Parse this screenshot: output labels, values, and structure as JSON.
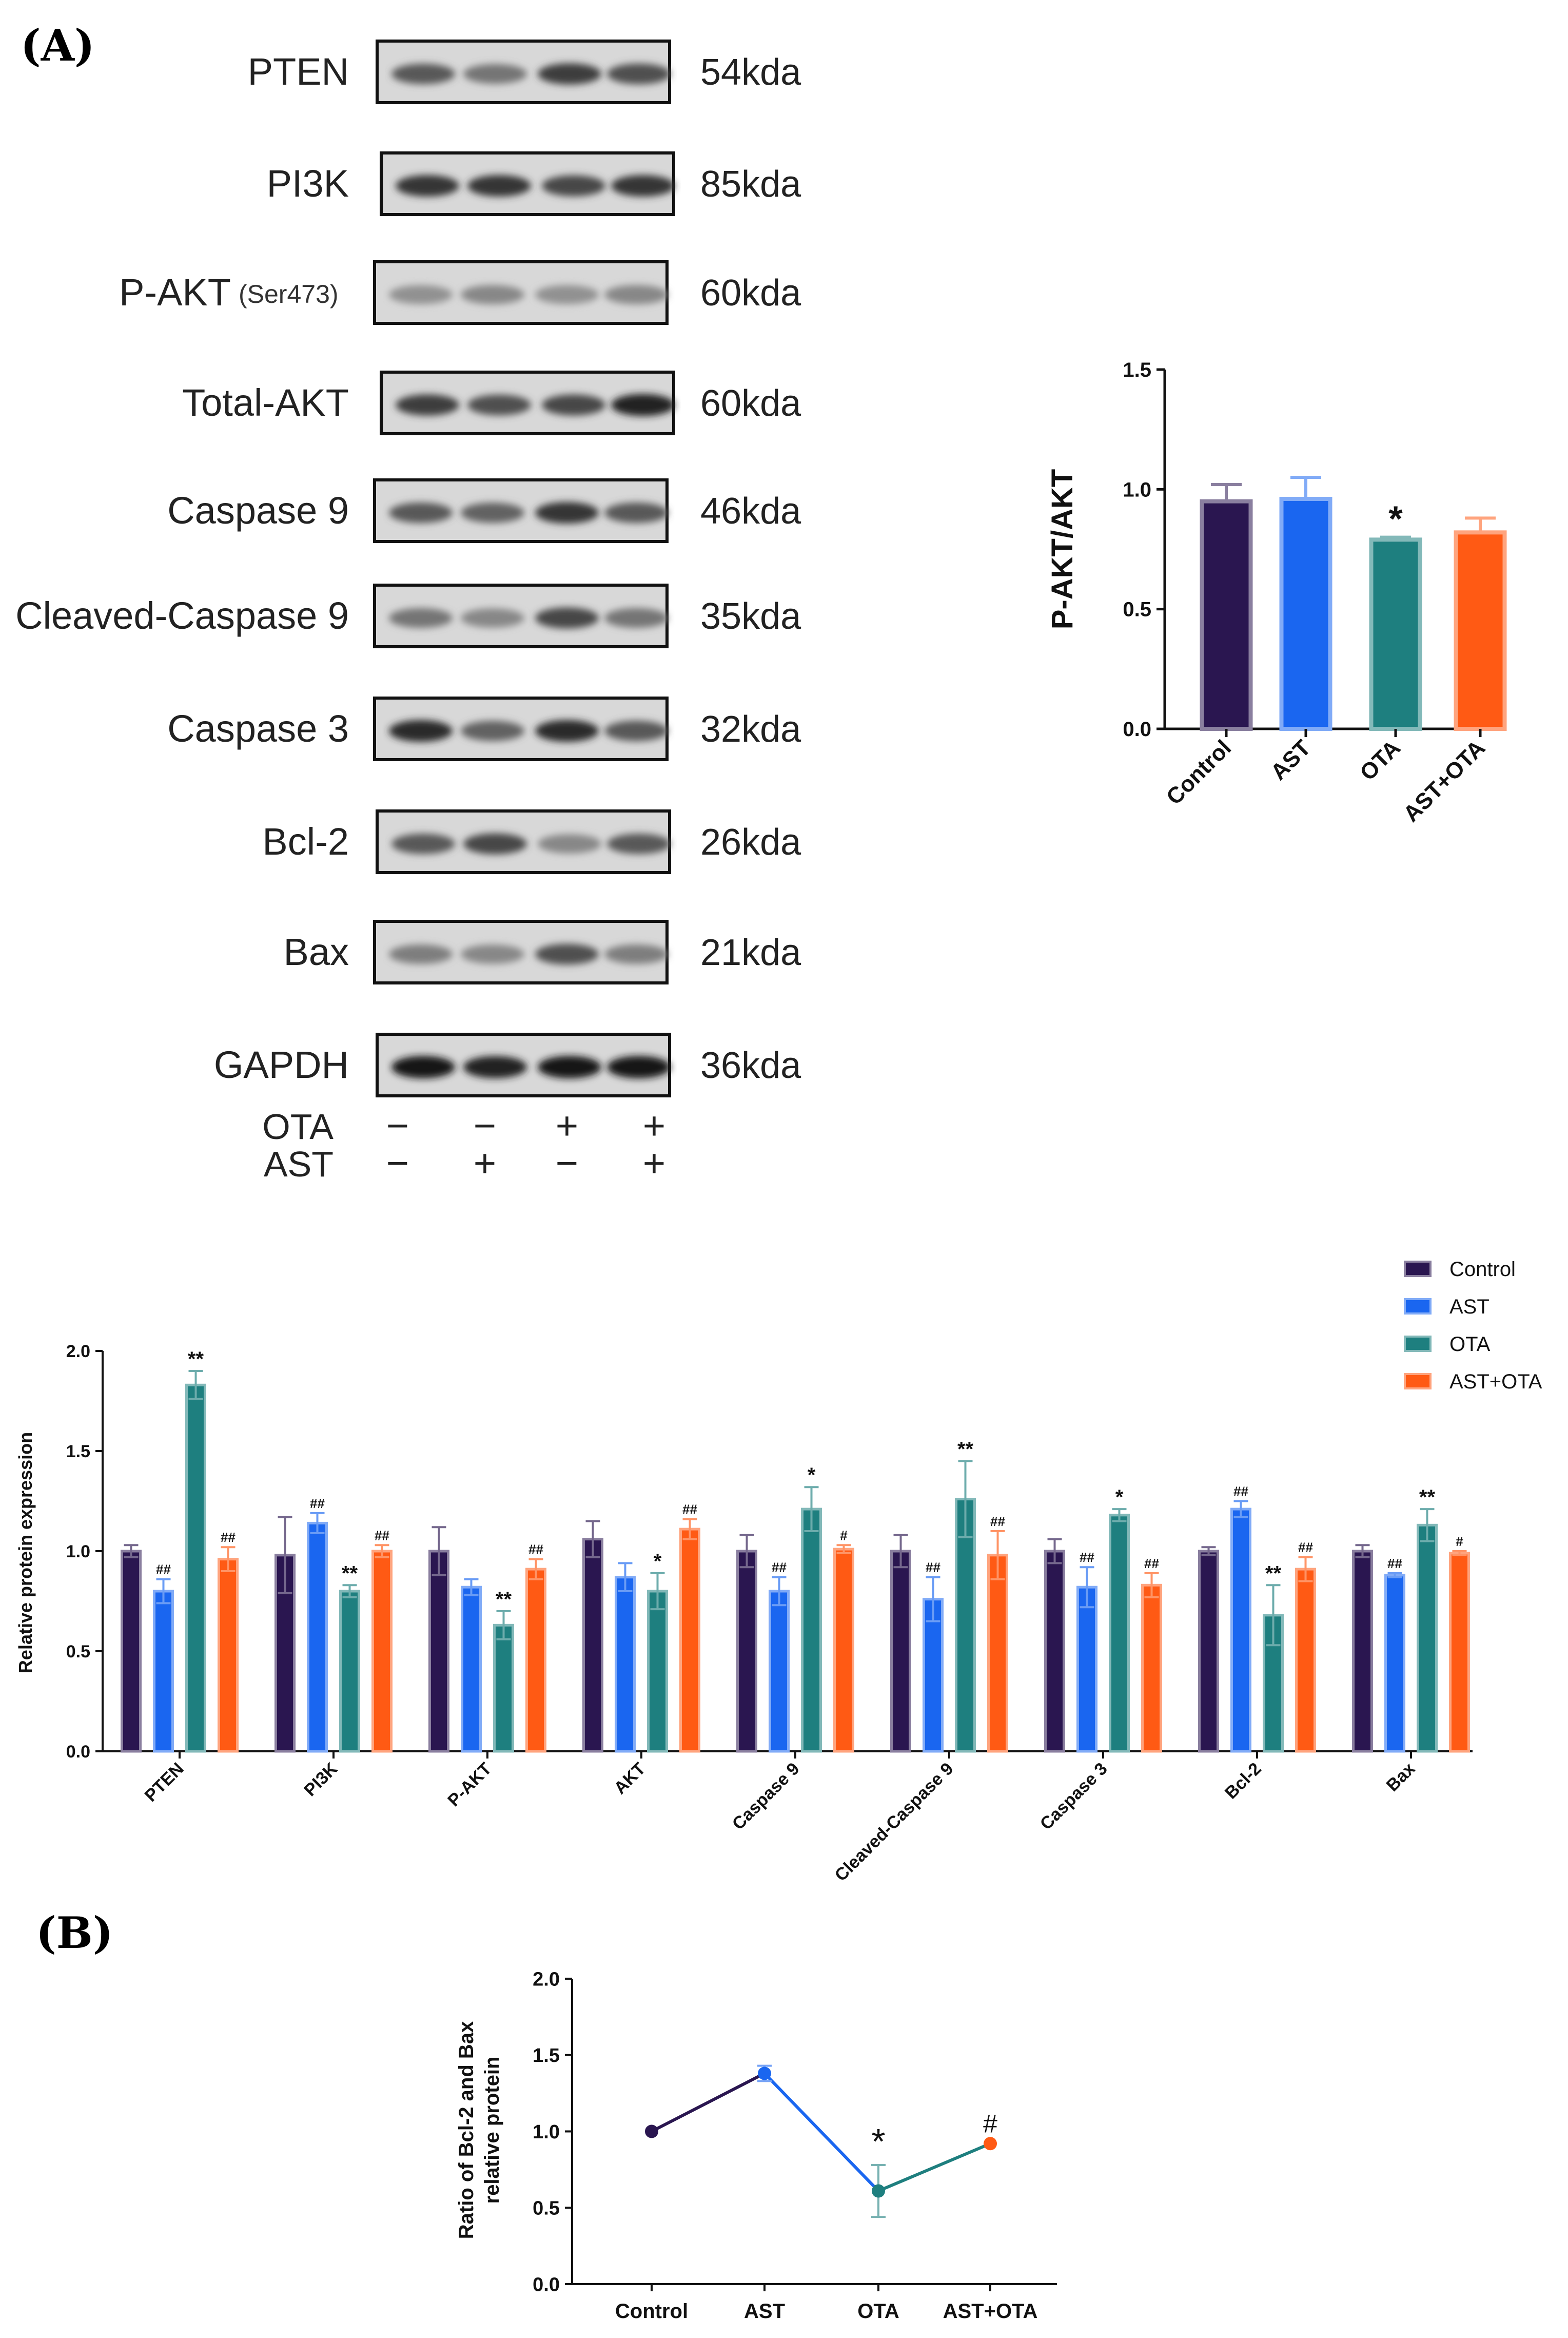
{
  "panels": {
    "A": "(A)",
    "B": "(B)"
  },
  "colors": {
    "control": "#2a1650",
    "ast": "#1a66f0",
    "ota": "#1e7f7f",
    "astota": "#ff5a14",
    "axis": "#111111"
  },
  "blot": {
    "rows": [
      {
        "label": "PTEN",
        "kda": "54kda"
      },
      {
        "label": "PI3K",
        "kda": "85kda"
      },
      {
        "label": "P-AKT",
        "sub": "(Ser473)",
        "kda": "60kda"
      },
      {
        "label": "Total-AKT",
        "kda": "60kda"
      },
      {
        "label": "Caspase 9",
        "kda": "46kda"
      },
      {
        "label": "Cleaved-Caspase 9",
        "kda": "35kda"
      },
      {
        "label": "Caspase 3",
        "kda": "32kda"
      },
      {
        "label": "Bcl-2",
        "kda": "26kda"
      },
      {
        "label": "Bax",
        "kda": "21kda"
      },
      {
        "label": "GAPDH",
        "kda": "36kda"
      }
    ],
    "band_intensity": [
      [
        0.6,
        0.45,
        0.75,
        0.65
      ],
      [
        0.8,
        0.8,
        0.7,
        0.8
      ],
      [
        0.3,
        0.35,
        0.3,
        0.35
      ],
      [
        0.75,
        0.65,
        0.7,
        0.9
      ],
      [
        0.6,
        0.55,
        0.8,
        0.6
      ],
      [
        0.45,
        0.35,
        0.7,
        0.45
      ],
      [
        0.85,
        0.55,
        0.85,
        0.6
      ],
      [
        0.6,
        0.7,
        0.35,
        0.6
      ],
      [
        0.4,
        0.35,
        0.65,
        0.4
      ],
      [
        0.95,
        0.9,
        0.95,
        0.95
      ]
    ],
    "treatments": [
      {
        "name": "OTA",
        "signs": [
          "−",
          "−",
          "+",
          "+"
        ]
      },
      {
        "name": "AST",
        "signs": [
          "−",
          "+",
          "−",
          "+"
        ]
      }
    ]
  },
  "chart_data": [
    {
      "type": "bar",
      "title": "",
      "xlabel": "",
      "ylabel": "P-AKT/AKT",
      "ylim": [
        0,
        1.5
      ],
      "yticks": [
        "0.0",
        "0.5",
        "1.0",
        "1.5"
      ],
      "categories": [
        "Control",
        "AST",
        "OTA",
        "AST+OTA"
      ],
      "values": [
        0.95,
        0.96,
        0.79,
        0.82
      ],
      "errors": [
        0.07,
        0.09,
        0.01,
        0.06
      ],
      "annotations": [
        "",
        "",
        "*",
        ""
      ]
    },
    {
      "type": "bar",
      "title": "",
      "xlabel": "",
      "ylabel": "Relative protein expression",
      "ylim": [
        0,
        2.0
      ],
      "yticks": [
        "0.0",
        "0.5",
        "1.0",
        "1.5",
        "2.0"
      ],
      "legend": [
        "Control",
        "AST",
        "OTA",
        "AST+OTA"
      ],
      "categories": [
        "PTEN",
        "PI3K",
        "P-AKT",
        "AKT",
        "Caspase 9",
        "Cleaved-Caspase 9",
        "Caspase 3",
        "Bcl-2",
        "Bax"
      ],
      "series": [
        {
          "name": "Control",
          "values": [
            1.0,
            0.98,
            1.0,
            1.06,
            1.0,
            1.0,
            1.0,
            1.0,
            1.0
          ],
          "errors": [
            0.03,
            0.19,
            0.12,
            0.09,
            0.08,
            0.08,
            0.06,
            0.02,
            0.03
          ],
          "annotations": [
            "",
            "",
            "",
            "",
            "",
            "",
            "",
            "",
            ""
          ]
        },
        {
          "name": "AST",
          "values": [
            0.8,
            1.14,
            0.82,
            0.87,
            0.8,
            0.76,
            0.82,
            1.21,
            0.88
          ],
          "errors": [
            0.06,
            0.05,
            0.04,
            0.07,
            0.07,
            0.11,
            0.1,
            0.04,
            0.01
          ],
          "annotations": [
            "##",
            "##",
            "",
            "",
            "##",
            "##",
            "##",
            "##",
            "##"
          ]
        },
        {
          "name": "OTA",
          "values": [
            1.83,
            0.8,
            0.63,
            0.8,
            1.21,
            1.26,
            1.18,
            0.68,
            1.13
          ],
          "errors": [
            0.07,
            0.03,
            0.07,
            0.09,
            0.11,
            0.19,
            0.03,
            0.15,
            0.08
          ],
          "annotations": [
            "**",
            "**",
            "**",
            "*",
            "*",
            "**",
            "*",
            "**",
            "**"
          ]
        },
        {
          "name": "AST+OTA",
          "values": [
            0.96,
            1.0,
            0.91,
            1.11,
            1.01,
            0.98,
            0.83,
            0.91,
            0.99
          ],
          "errors": [
            0.06,
            0.03,
            0.05,
            0.05,
            0.02,
            0.12,
            0.06,
            0.06,
            0.01
          ],
          "annotations": [
            "##",
            "##",
            "##",
            "##",
            "#",
            "##",
            "##",
            "##",
            "#"
          ]
        }
      ]
    },
    {
      "type": "line",
      "title": "",
      "xlabel": "",
      "ylabel": [
        "Ratio of Bcl-2 and Bax",
        "relative protein"
      ],
      "ylim": [
        0,
        2.0
      ],
      "yticks": [
        "0.0",
        "0.5",
        "1.0",
        "1.5",
        "2.0"
      ],
      "categories": [
        "Control",
        "AST",
        "OTA",
        "AST+OTA"
      ],
      "values": [
        1.0,
        1.38,
        0.61,
        0.92
      ],
      "errors": [
        0.01,
        0.05,
        0.17,
        0.02
      ],
      "annotations": [
        "",
        "",
        "*",
        "#"
      ]
    }
  ]
}
